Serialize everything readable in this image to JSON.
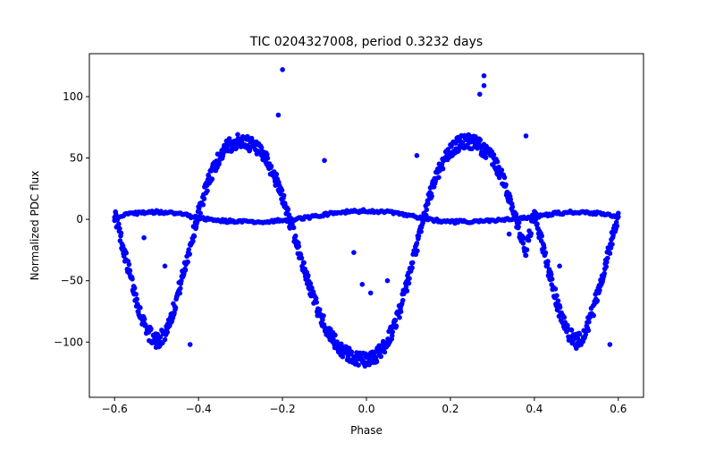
{
  "chart_data": {
    "type": "scatter",
    "title": "TIC 0204327008, period 0.3232 days",
    "xlabel": "Phase",
    "ylabel": "Normalized PDC flux",
    "xlim": [
      -0.66,
      0.66
    ],
    "ylim": [
      -145,
      135
    ],
    "xticks": [
      -0.6,
      -0.4,
      -0.2,
      0.0,
      0.2,
      0.4,
      0.6
    ],
    "xtick_labels": [
      "−0.6",
      "−0.4",
      "−0.2",
      "0.0",
      "0.2",
      "0.4",
      "0.6"
    ],
    "yticks": [
      -100,
      -50,
      0,
      50,
      100
    ],
    "ytick_labels": [
      "−100",
      "−50",
      "0",
      "50",
      "100"
    ],
    "grid": false,
    "legend": "none",
    "marker_color": "#0000ff",
    "series": [
      {
        "label_key": "main_light_curve",
        "points_x": [
          -0.6,
          -0.58,
          -0.56,
          -0.54,
          -0.52,
          -0.5,
          -0.48,
          -0.46,
          -0.44,
          -0.42,
          -0.4,
          -0.38,
          -0.36,
          -0.34,
          -0.32,
          -0.3,
          -0.28,
          -0.26,
          -0.24,
          -0.22,
          -0.2,
          -0.18,
          -0.16,
          -0.14,
          -0.12,
          -0.1,
          -0.08,
          -0.06,
          -0.04,
          -0.02,
          0.0,
          0.02,
          0.04,
          0.06,
          0.08,
          0.1,
          0.12,
          0.14,
          0.16,
          0.18,
          0.2,
          0.22,
          0.24,
          0.26,
          0.28,
          0.3,
          0.32,
          0.34,
          0.36,
          0.38,
          0.4,
          0.42,
          0.44,
          0.46,
          0.48,
          0.5,
          0.52,
          0.54,
          0.56,
          0.58,
          0.6
        ],
        "points_y": [
          5,
          -22,
          -50,
          -75,
          -92,
          -100,
          -93,
          -74,
          -49,
          -22,
          5,
          28,
          45,
          56,
          62,
          64,
          62,
          57,
          49,
          36,
          18,
          -4,
          -27,
          -50,
          -70,
          -86,
          -98,
          -106,
          -111,
          -114,
          -115,
          -112,
          -105,
          -92,
          -73,
          -49,
          -22,
          5,
          30,
          46,
          56,
          62,
          64,
          62,
          57,
          49,
          37,
          19,
          -4,
          -27,
          5,
          -22,
          -50,
          -75,
          -92,
          -100,
          -93,
          -74,
          -49,
          -22,
          5
        ]
      },
      {
        "label_key": "secondary_flat_branch",
        "points_x": [
          -0.6,
          -0.55,
          -0.5,
          -0.45,
          -0.4,
          -0.35,
          -0.3,
          -0.25,
          -0.2,
          -0.15,
          -0.1,
          -0.05,
          0.0,
          0.05,
          0.1,
          0.15,
          0.2,
          0.25,
          0.3,
          0.35,
          0.4,
          0.45,
          0.5,
          0.55,
          0.6
        ],
        "points_y": [
          2,
          5,
          6,
          5,
          1,
          -1,
          -2,
          -2,
          -1,
          1,
          4,
          6,
          7,
          6,
          3,
          0,
          -2,
          -2,
          -1,
          0,
          2,
          5,
          6,
          5,
          2
        ]
      }
    ],
    "outliers": [
      [
        -0.2,
        122
      ],
      [
        -0.21,
        85
      ],
      [
        -0.42,
        -102
      ],
      [
        0.27,
        102
      ],
      [
        0.28,
        117
      ],
      [
        0.28,
        109
      ],
      [
        0.38,
        68
      ],
      [
        0.58,
        -102
      ],
      [
        -0.48,
        -38
      ],
      [
        -0.53,
        -15
      ],
      [
        -0.1,
        48
      ],
      [
        0.12,
        52
      ],
      [
        0.05,
        -50
      ],
      [
        -0.01,
        -53
      ],
      [
        0.01,
        -60
      ],
      [
        -0.03,
        -27
      ],
      [
        0.46,
        -38
      ],
      [
        0.34,
        -12
      ]
    ]
  }
}
